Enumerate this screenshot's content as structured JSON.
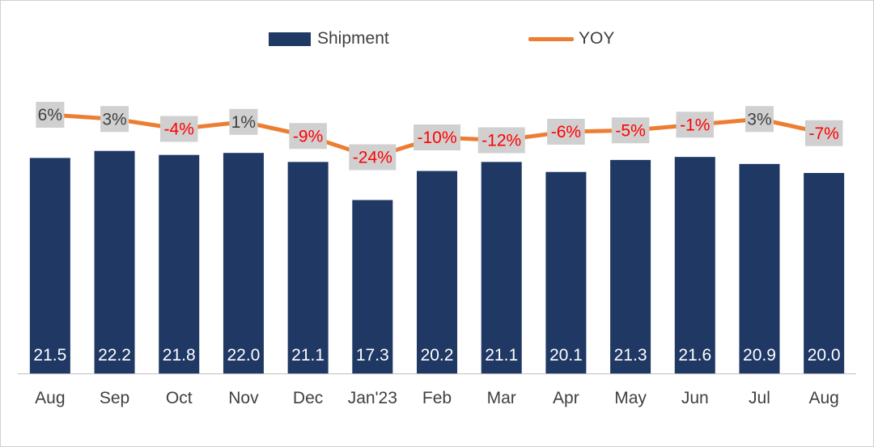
{
  "chart_data": {
    "type": "bar",
    "categories": [
      "Aug",
      "Sep",
      "Oct",
      "Nov",
      "Dec",
      "Jan'23",
      "Feb",
      "Mar",
      "Apr",
      "May",
      "Jun",
      "Jul",
      "Aug"
    ],
    "series": [
      {
        "name": "Shipment",
        "type": "bar",
        "color": "#1f3864",
        "values": [
          21.5,
          22.2,
          21.8,
          22.0,
          21.1,
          17.3,
          20.2,
          21.1,
          20.1,
          21.3,
          21.6,
          20.9,
          20.0
        ],
        "labels": [
          "21.5",
          "22.2",
          "21.8",
          "22.0",
          "21.1",
          "17.3",
          "20.2",
          "21.1",
          "20.1",
          "21.3",
          "21.6",
          "20.9",
          "20.0"
        ]
      },
      {
        "name": "YOY",
        "type": "line",
        "color": "#ed7d31",
        "values": [
          6,
          3,
          -4,
          1,
          -9,
          -24,
          -10,
          -12,
          -6,
          -5,
          -1,
          3,
          -7
        ],
        "labels": [
          "6%",
          "3%",
          "-4%",
          "1%",
          "-9%",
          "-24%",
          "-10%",
          "-12%",
          "-6%",
          "-5%",
          "-1%",
          "3%",
          "-7%"
        ]
      }
    ],
    "label_colors": {
      "positive": "#404040",
      "negative": "#ff0000"
    },
    "label_box_color": "#d0d0d0",
    "legend_position": "top",
    "grid": false
  },
  "legend": {
    "shipment_label": "Shipment",
    "yoy_label": "YOY"
  }
}
